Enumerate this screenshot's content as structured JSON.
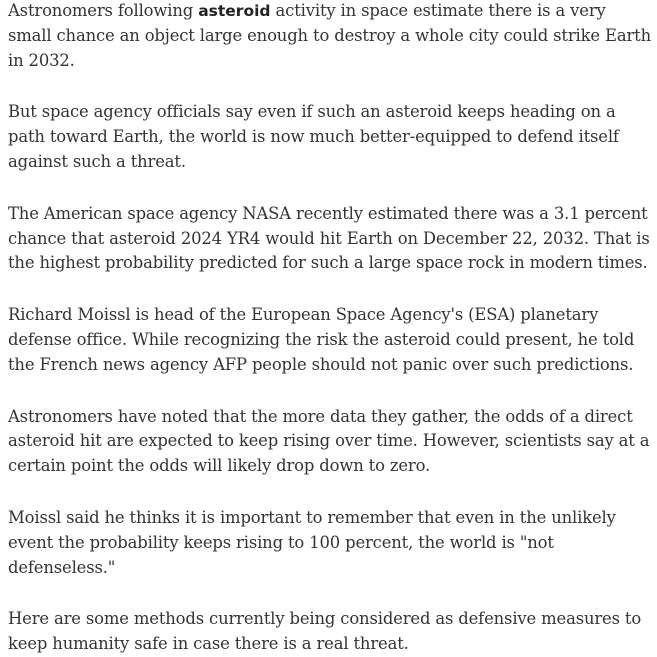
{
  "article": {
    "p1": {
      "before": "Astronomers following ",
      "keyword": "asteroid",
      "after": " activity in space estimate there is a very small chance an object large enough to destroy a whole city could strike Earth in 2032."
    },
    "p2": "But space agency officials say even if such an asteroid keeps heading on a path toward Earth, the world is now much better-equipped to defend itself against such a threat.",
    "p3": "The American space agency NASA recently estimated there was a 3.1 percent chance that asteroid 2024 YR4 would hit Earth on December 22, 2032. That is the highest probability predicted for such a large space rock in modern times.",
    "p4": "Richard Moissl is head of the European Space Agency's (ESA) planetary defense office. While recognizing the risk the asteroid could present, he told the French news agency AFP people should not panic over such predictions.",
    "p5": "Astronomers have noted that the more data they gather, the odds of a direct asteroid hit are expected to keep rising over time. However, scientists say at a certain point the odds will likely drop down to zero.",
    "p6": "Moissl said he thinks it is important to remember that even in the unlikely event the probability keeps rising to 100 percent, the world is \"not defenseless.\"",
    "p7": "Here are some methods currently being considered as defensive measures to keep humanity safe in case there is a real threat."
  }
}
